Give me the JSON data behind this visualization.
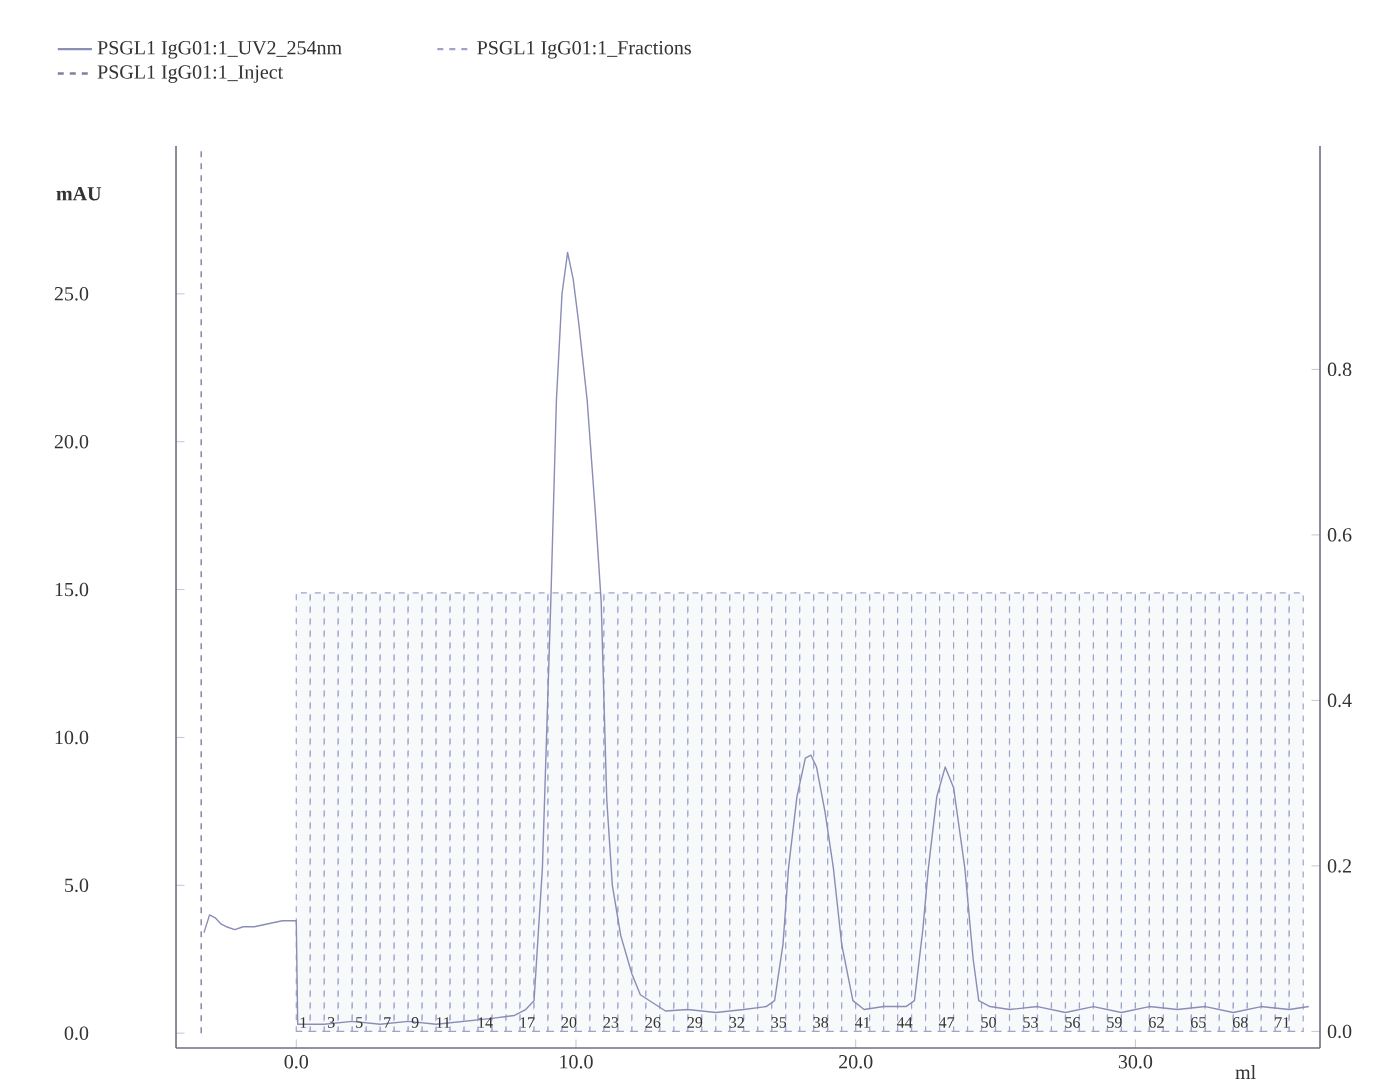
{
  "chart_data": {
    "type": "line",
    "xlabel": "ml",
    "ylabel": "mAU",
    "legend": "top",
    "xlim": [
      -4.3,
      36.6
    ],
    "ylim": [
      -0.5,
      30
    ],
    "y2lim": [
      -0.02,
      1.07
    ],
    "xticks": [
      {
        "value": 0,
        "label": "0.0"
      },
      {
        "value": 10,
        "label": "10.0"
      },
      {
        "value": 20,
        "label": "20.0"
      },
      {
        "value": 30,
        "label": "30.0"
      }
    ],
    "yticks": [
      {
        "value": 0,
        "label": "0.0"
      },
      {
        "value": 5,
        "label": "5.0"
      },
      {
        "value": 10,
        "label": "10.0"
      },
      {
        "value": 15,
        "label": "15.0"
      },
      {
        "value": 20,
        "label": "20.0"
      },
      {
        "value": 25,
        "label": "25.0"
      }
    ],
    "y2ticks": [
      {
        "value": 0,
        "label": "0.0"
      },
      {
        "value": 0.2,
        "label": "0.2"
      },
      {
        "value": 0.4,
        "label": "0.4"
      },
      {
        "value": 0.6,
        "label": "0.6"
      },
      {
        "value": 0.8,
        "label": "0.8"
      }
    ],
    "series": [
      {
        "name": "PSGL1 IgG01:1_UV2_254nm",
        "color": "#8a8db5",
        "line_style": "solid",
        "x": [
          -3.3,
          -3.1,
          -2.9,
          -2.7,
          -2.5,
          -2.2,
          -1.9,
          -1.5,
          -1.0,
          -0.5,
          0.0,
          0.05,
          1,
          2,
          3,
          4,
          5,
          6,
          7,
          7.8,
          8.2,
          8.5,
          8.8,
          9.1,
          9.3,
          9.5,
          9.7,
          9.9,
          10.1,
          10.4,
          10.7,
          10.9,
          11.1,
          11.3,
          11.6,
          12.0,
          12.3,
          13.2,
          14,
          15,
          16,
          16.8,
          17.1,
          17.4,
          17.6,
          17.9,
          18.2,
          18.4,
          18.6,
          18.9,
          19.2,
          19.5,
          19.9,
          20.3,
          21,
          21.8,
          22.1,
          22.4,
          22.6,
          22.9,
          23.2,
          23.5,
          23.9,
          24.2,
          24.4,
          24.8,
          25.5,
          26.5,
          27.5,
          28.5,
          29.5,
          30.5,
          31.5,
          32.5,
          33.5,
          34.5,
          35.5,
          36.2
        ],
        "values": [
          3.4,
          4.0,
          3.9,
          3.7,
          3.6,
          3.5,
          3.6,
          3.6,
          3.7,
          3.8,
          3.8,
          0.3,
          0.3,
          0.4,
          0.3,
          0.4,
          0.3,
          0.4,
          0.5,
          0.6,
          0.8,
          1.1,
          5.6,
          14.6,
          21.4,
          25.0,
          26.4,
          25.5,
          24.0,
          21.4,
          17.5,
          14.6,
          7.9,
          5.0,
          3.3,
          2.0,
          1.3,
          0.75,
          0.8,
          0.7,
          0.8,
          0.9,
          1.1,
          3.0,
          5.6,
          8.0,
          9.3,
          9.4,
          9.0,
          7.5,
          5.6,
          3.0,
          1.1,
          0.8,
          0.9,
          0.9,
          1.1,
          3.5,
          5.6,
          8.0,
          9.0,
          8.3,
          5.6,
          2.5,
          1.1,
          0.9,
          0.8,
          0.9,
          0.7,
          0.9,
          0.7,
          0.9,
          0.8,
          0.9,
          0.7,
          0.9,
          0.8,
          0.9
        ]
      },
      {
        "name": "PSGL1 IgG01:1_Fractions",
        "type": "bar",
        "axis": "y2",
        "color": "#9ea3cc",
        "line_style": "dashed",
        "x": [
          0.25,
          0.75,
          1.25,
          1.75,
          2.25,
          2.75,
          3.25,
          3.75,
          4.25,
          4.75,
          5.25,
          5.75,
          6.25,
          6.75,
          7.25,
          7.75,
          8.25,
          8.75,
          9.25,
          9.75,
          10.25,
          10.75,
          11.25,
          11.75,
          12.25,
          12.75,
          13.25,
          13.75,
          14.25,
          14.75,
          15.25,
          15.75,
          16.25,
          16.75,
          17.25,
          17.75,
          18.25,
          18.75,
          19.25,
          19.75,
          20.25,
          20.75,
          21.25,
          21.75,
          22.25,
          22.75,
          23.25,
          23.75,
          24.25,
          24.75,
          25.25,
          25.75,
          26.25,
          26.75,
          27.25,
          27.75,
          28.25,
          28.75,
          29.25,
          29.75,
          30.25,
          30.75,
          31.25,
          31.75,
          32.25,
          32.75,
          33.25,
          33.75,
          34.25,
          34.75,
          35.25,
          35.75
        ],
        "values": [
          0.53,
          0.53,
          0.53,
          0.53,
          0.53,
          0.53,
          0.53,
          0.53,
          0.53,
          0.53,
          0.53,
          0.53,
          0.53,
          0.53,
          0.53,
          0.53,
          0.53,
          0.53,
          0.53,
          0.53,
          0.53,
          0.53,
          0.53,
          0.53,
          0.53,
          0.53,
          0.53,
          0.53,
          0.53,
          0.53,
          0.53,
          0.53,
          0.53,
          0.53,
          0.53,
          0.53,
          0.53,
          0.53,
          0.53,
          0.53,
          0.53,
          0.53,
          0.53,
          0.53,
          0.53,
          0.53,
          0.53,
          0.53,
          0.53,
          0.53,
          0.53,
          0.53,
          0.53,
          0.53,
          0.53,
          0.53,
          0.53,
          0.53,
          0.53,
          0.53,
          0.53,
          0.53,
          0.53,
          0.53,
          0.53,
          0.53,
          0.53,
          0.53,
          0.53,
          0.53,
          0.53,
          0.53
        ]
      },
      {
        "name": "PSGL1 IgG01:1_Inject",
        "color": "#7d80a8",
        "line_style": "dashed",
        "x": [
          -3.4,
          -3.4
        ],
        "values": [
          0,
          30
        ]
      }
    ],
    "annotations": [
      {
        "text": "1",
        "x": 0.25,
        "y": 0
      },
      {
        "text": "3",
        "x": 1.25,
        "y": 0
      },
      {
        "text": "5",
        "x": 2.25,
        "y": 0
      },
      {
        "text": "7",
        "x": 3.25,
        "y": 0
      },
      {
        "text": "9",
        "x": 4.25,
        "y": 0
      },
      {
        "text": "11",
        "x": 5.25,
        "y": 0
      },
      {
        "text": "14",
        "x": 6.75,
        "y": 0
      },
      {
        "text": "17",
        "x": 8.25,
        "y": 0
      },
      {
        "text": "20",
        "x": 9.75,
        "y": 0
      },
      {
        "text": "23",
        "x": 11.25,
        "y": 0
      },
      {
        "text": "26",
        "x": 12.75,
        "y": 0
      },
      {
        "text": "29",
        "x": 14.25,
        "y": 0
      },
      {
        "text": "32",
        "x": 15.75,
        "y": 0
      },
      {
        "text": "35",
        "x": 17.25,
        "y": 0
      },
      {
        "text": "38",
        "x": 18.75,
        "y": 0
      },
      {
        "text": "41",
        "x": 20.25,
        "y": 0
      },
      {
        "text": "44",
        "x": 21.75,
        "y": 0
      },
      {
        "text": "47",
        "x": 23.25,
        "y": 0
      },
      {
        "text": "50",
        "x": 24.75,
        "y": 0
      },
      {
        "text": "53",
        "x": 26.25,
        "y": 0
      },
      {
        "text": "56",
        "x": 27.75,
        "y": 0
      },
      {
        "text": "59",
        "x": 29.25,
        "y": 0
      },
      {
        "text": "62",
        "x": 30.75,
        "y": 0
      },
      {
        "text": "65",
        "x": 32.25,
        "y": 0
      },
      {
        "text": "68",
        "x": 33.75,
        "y": 0
      },
      {
        "text": "71",
        "x": 35.25,
        "y": 0
      }
    ]
  }
}
